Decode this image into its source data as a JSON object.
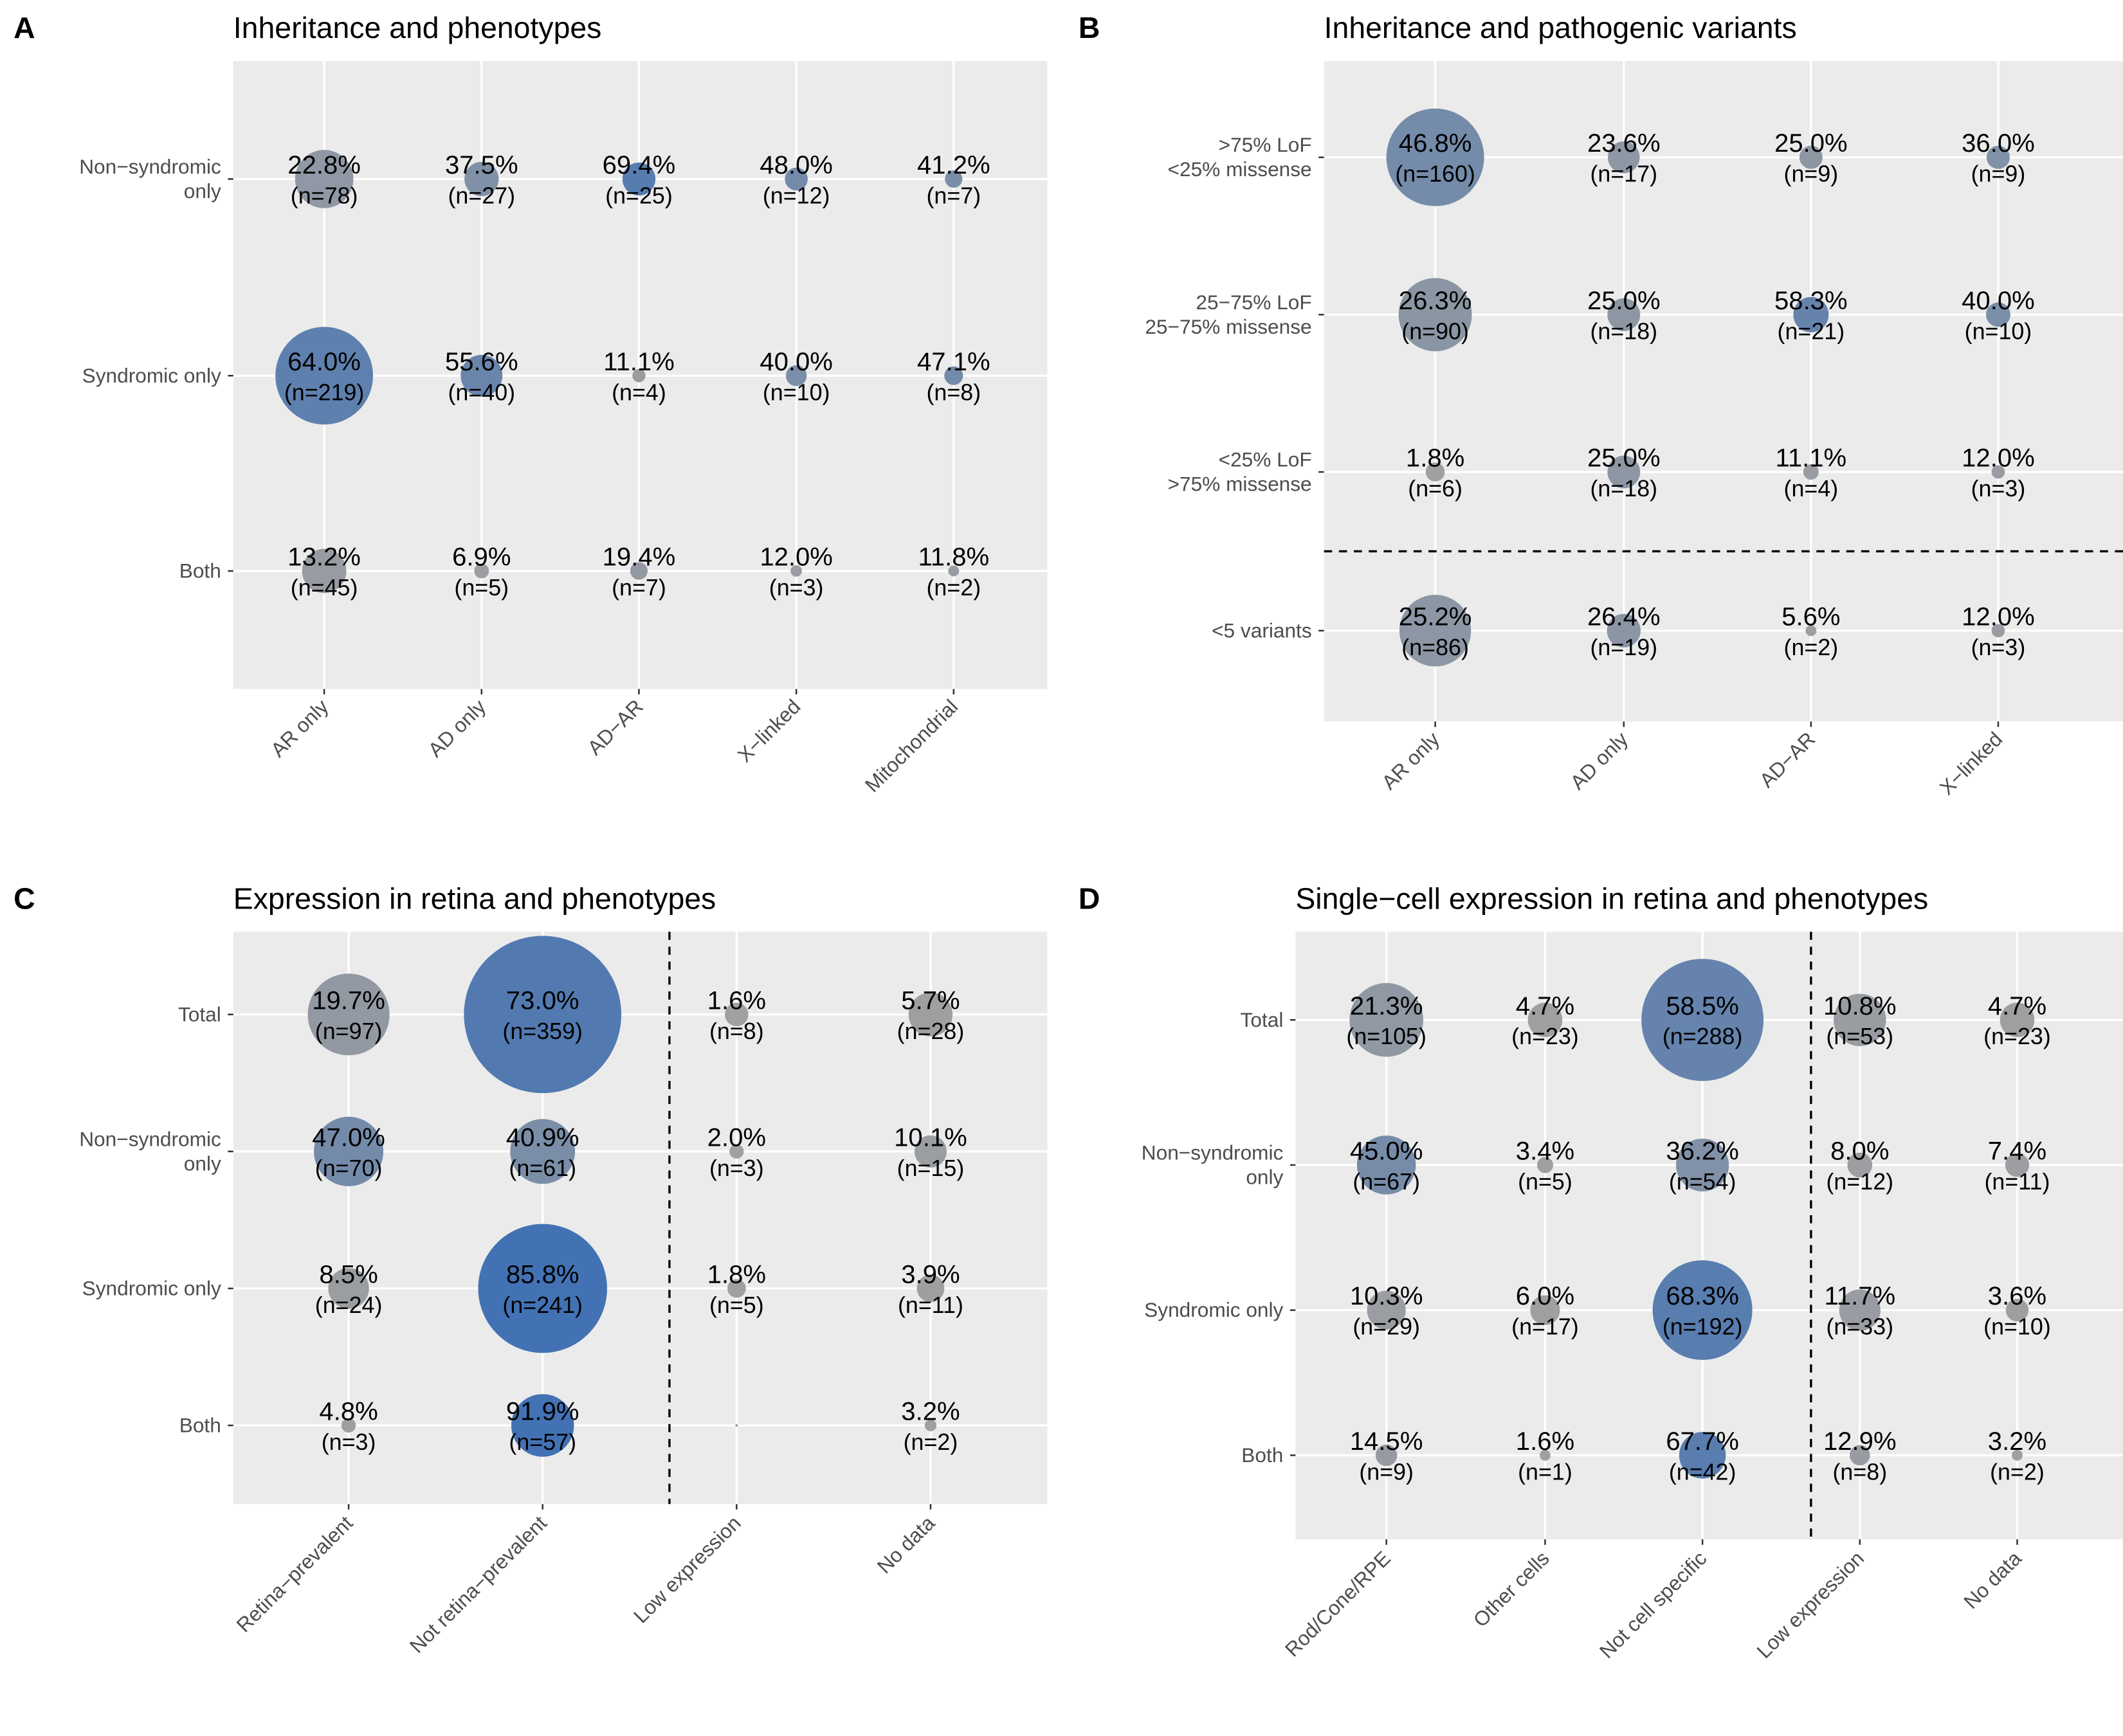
{
  "figure": {
    "domain": "Chart"
  },
  "colors": {
    "low": "#a0a0a0",
    "high": "#4272b4",
    "panel_bg": "#ebebeb",
    "grid": "#ffffff"
  },
  "chart_data": [
    {
      "id": "A",
      "type": "scatter",
      "subtype": "bubble-matrix",
      "letter": "A",
      "title": "Inheritance and phenotypes",
      "xlabel": "",
      "ylabel": "",
      "x_categories": [
        "AR only",
        "AD only",
        "AD−AR",
        "X−linked",
        "Mitochondrial"
      ],
      "y_categories": [
        "Non−syndromic\nonly",
        "Syndromic only",
        "Both"
      ],
      "divider": null,
      "cells": [
        {
          "x": 0,
          "y": 0,
          "pct": "22.8%",
          "n": "(n=78)",
          "value": 22.8
        },
        {
          "x": 1,
          "y": 0,
          "pct": "37.5%",
          "n": "(n=27)",
          "value": 37.5
        },
        {
          "x": 2,
          "y": 0,
          "pct": "69.4%",
          "n": "(n=25)",
          "value": 69.4
        },
        {
          "x": 3,
          "y": 0,
          "pct": "48.0%",
          "n": "(n=12)",
          "value": 48.0
        },
        {
          "x": 4,
          "y": 0,
          "pct": "41.2%",
          "n": "(n=7)",
          "value": 41.2
        },
        {
          "x": 0,
          "y": 1,
          "pct": "64.0%",
          "n": "(n=219)",
          "value": 64.0
        },
        {
          "x": 1,
          "y": 1,
          "pct": "55.6%",
          "n": "(n=40)",
          "value": 55.6
        },
        {
          "x": 2,
          "y": 1,
          "pct": "11.1%",
          "n": "(n=4)",
          "value": 11.1
        },
        {
          "x": 3,
          "y": 1,
          "pct": "40.0%",
          "n": "(n=10)",
          "value": 40.0
        },
        {
          "x": 4,
          "y": 1,
          "pct": "47.1%",
          "n": "(n=8)",
          "value": 47.1
        },
        {
          "x": 0,
          "y": 2,
          "pct": "13.2%",
          "n": "(n=45)",
          "value": 13.2
        },
        {
          "x": 1,
          "y": 2,
          "pct": "6.9%",
          "n": "(n=5)",
          "value": 6.9
        },
        {
          "x": 2,
          "y": 2,
          "pct": "19.4%",
          "n": "(n=7)",
          "value": 19.4
        },
        {
          "x": 3,
          "y": 2,
          "pct": "12.0%",
          "n": "(n=3)",
          "value": 12.0
        },
        {
          "x": 4,
          "y": 2,
          "pct": "11.8%",
          "n": "(n=2)",
          "value": 11.8
        }
      ]
    },
    {
      "id": "B",
      "type": "scatter",
      "subtype": "bubble-matrix",
      "letter": "B",
      "title": "Inheritance and pathogenic variants",
      "xlabel": "",
      "ylabel": "",
      "x_categories": [
        "AR only",
        "AD only",
        "AD−AR",
        "X−linked"
      ],
      "y_categories": [
        ">75% LoF\n<25% missense",
        "25−75% LoF\n25−75% missense",
        "<25% LoF\n>75% missense",
        "<5 variants"
      ],
      "divider": {
        "orientation": "horizontal",
        "between": [
          2,
          3
        ]
      },
      "cells": [
        {
          "x": 0,
          "y": 0,
          "pct": "46.8%",
          "n": "(n=160)",
          "value": 46.8
        },
        {
          "x": 1,
          "y": 0,
          "pct": "23.6%",
          "n": "(n=17)",
          "value": 23.6
        },
        {
          "x": 2,
          "y": 0,
          "pct": "25.0%",
          "n": "(n=9)",
          "value": 25.0
        },
        {
          "x": 3,
          "y": 0,
          "pct": "36.0%",
          "n": "(n=9)",
          "value": 36.0
        },
        {
          "x": 0,
          "y": 1,
          "pct": "26.3%",
          "n": "(n=90)",
          "value": 26.3
        },
        {
          "x": 1,
          "y": 1,
          "pct": "25.0%",
          "n": "(n=18)",
          "value": 25.0
        },
        {
          "x": 2,
          "y": 1,
          "pct": "58.3%",
          "n": "(n=21)",
          "value": 58.3
        },
        {
          "x": 3,
          "y": 1,
          "pct": "40.0%",
          "n": "(n=10)",
          "value": 40.0
        },
        {
          "x": 0,
          "y": 2,
          "pct": "1.8%",
          "n": "(n=6)",
          "value": 1.8
        },
        {
          "x": 1,
          "y": 2,
          "pct": "25.0%",
          "n": "(n=18)",
          "value": 25.0
        },
        {
          "x": 2,
          "y": 2,
          "pct": "11.1%",
          "n": "(n=4)",
          "value": 11.1
        },
        {
          "x": 3,
          "y": 2,
          "pct": "12.0%",
          "n": "(n=3)",
          "value": 12.0
        },
        {
          "x": 0,
          "y": 3,
          "pct": "25.2%",
          "n": "(n=86)",
          "value": 25.2
        },
        {
          "x": 1,
          "y": 3,
          "pct": "26.4%",
          "n": "(n=19)",
          "value": 26.4
        },
        {
          "x": 2,
          "y": 3,
          "pct": "5.6%",
          "n": "(n=2)",
          "value": 5.6
        },
        {
          "x": 3,
          "y": 3,
          "pct": "12.0%",
          "n": "(n=3)",
          "value": 12.0
        }
      ]
    },
    {
      "id": "C",
      "type": "scatter",
      "subtype": "bubble-matrix",
      "letter": "C",
      "title": "Expression in retina and phenotypes",
      "xlabel": "",
      "ylabel": "",
      "x_categories": [
        "Retina−prevalent",
        "Not retina−prevalent",
        "Low expression",
        "No data"
      ],
      "y_categories": [
        "Total",
        "Non−syndromic\nonly",
        "Syndromic only",
        "Both"
      ],
      "divider": {
        "orientation": "vertical",
        "between": [
          1,
          2
        ]
      },
      "cells": [
        {
          "x": 0,
          "y": 0,
          "pct": "19.7%",
          "n": "(n=97)",
          "value": 19.7
        },
        {
          "x": 1,
          "y": 0,
          "pct": "73.0%",
          "n": "(n=359)",
          "value": 73.0
        },
        {
          "x": 2,
          "y": 0,
          "pct": "1.6%",
          "n": "(n=8)",
          "value": 1.6
        },
        {
          "x": 3,
          "y": 0,
          "pct": "5.7%",
          "n": "(n=28)",
          "value": 5.7
        },
        {
          "x": 0,
          "y": 1,
          "pct": "47.0%",
          "n": "(n=70)",
          "value": 47.0
        },
        {
          "x": 1,
          "y": 1,
          "pct": "40.9%",
          "n": "(n=61)",
          "value": 40.9
        },
        {
          "x": 2,
          "y": 1,
          "pct": "2.0%",
          "n": "(n=3)",
          "value": 2.0
        },
        {
          "x": 3,
          "y": 1,
          "pct": "10.1%",
          "n": "(n=15)",
          "value": 10.1
        },
        {
          "x": 0,
          "y": 2,
          "pct": "8.5%",
          "n": "(n=24)",
          "value": 8.5
        },
        {
          "x": 1,
          "y": 2,
          "pct": "85.8%",
          "n": "(n=241)",
          "value": 85.8
        },
        {
          "x": 2,
          "y": 2,
          "pct": "1.8%",
          "n": "(n=5)",
          "value": 1.8
        },
        {
          "x": 3,
          "y": 2,
          "pct": "3.9%",
          "n": "(n=11)",
          "value": 3.9
        },
        {
          "x": 0,
          "y": 3,
          "pct": "4.8%",
          "n": "(n=3)",
          "value": 4.8
        },
        {
          "x": 1,
          "y": 3,
          "pct": "91.9%",
          "n": "(n=57)",
          "value": 91.9
        },
        {
          "x": 2,
          "y": 3,
          "pct": "",
          "n": "",
          "value": 0
        },
        {
          "x": 3,
          "y": 3,
          "pct": "3.2%",
          "n": "(n=2)",
          "value": 3.2
        }
      ]
    },
    {
      "id": "D",
      "type": "scatter",
      "subtype": "bubble-matrix",
      "letter": "D",
      "title": "Single−cell expression in retina and phenotypes",
      "xlabel": "",
      "ylabel": "",
      "x_categories": [
        "Rod/Cone/RPE",
        "Other cells",
        "Not cell specific",
        "Low expression",
        "No data"
      ],
      "y_categories": [
        "Total",
        "Non−syndromic\nonly",
        "Syndromic only",
        "Both"
      ],
      "divider": {
        "orientation": "vertical",
        "between": [
          2,
          3
        ]
      },
      "cells": [
        {
          "x": 0,
          "y": 0,
          "pct": "21.3%",
          "n": "(n=105)",
          "value": 21.3
        },
        {
          "x": 1,
          "y": 0,
          "pct": "4.7%",
          "n": "(n=23)",
          "value": 4.7
        },
        {
          "x": 2,
          "y": 0,
          "pct": "58.5%",
          "n": "(n=288)",
          "value": 58.5
        },
        {
          "x": 3,
          "y": 0,
          "pct": "10.8%",
          "n": "(n=53)",
          "value": 10.8
        },
        {
          "x": 4,
          "y": 0,
          "pct": "4.7%",
          "n": "(n=23)",
          "value": 4.7
        },
        {
          "x": 0,
          "y": 1,
          "pct": "45.0%",
          "n": "(n=67)",
          "value": 45.0
        },
        {
          "x": 1,
          "y": 1,
          "pct": "3.4%",
          "n": "(n=5)",
          "value": 3.4
        },
        {
          "x": 2,
          "y": 1,
          "pct": "36.2%",
          "n": "(n=54)",
          "value": 36.2
        },
        {
          "x": 3,
          "y": 1,
          "pct": "8.0%",
          "n": "(n=12)",
          "value": 8.0
        },
        {
          "x": 4,
          "y": 1,
          "pct": "7.4%",
          "n": "(n=11)",
          "value": 7.4
        },
        {
          "x": 0,
          "y": 2,
          "pct": "10.3%",
          "n": "(n=29)",
          "value": 10.3
        },
        {
          "x": 1,
          "y": 2,
          "pct": "6.0%",
          "n": "(n=17)",
          "value": 6.0
        },
        {
          "x": 2,
          "y": 2,
          "pct": "68.3%",
          "n": "(n=192)",
          "value": 68.3
        },
        {
          "x": 3,
          "y": 2,
          "pct": "11.7%",
          "n": "(n=33)",
          "value": 11.7
        },
        {
          "x": 4,
          "y": 2,
          "pct": "3.6%",
          "n": "(n=10)",
          "value": 3.6
        },
        {
          "x": 0,
          "y": 3,
          "pct": "14.5%",
          "n": "(n=9)",
          "value": 14.5
        },
        {
          "x": 1,
          "y": 3,
          "pct": "1.6%",
          "n": "(n=1)",
          "value": 1.6
        },
        {
          "x": 2,
          "y": 3,
          "pct": "67.7%",
          "n": "(n=42)",
          "value": 67.7
        },
        {
          "x": 3,
          "y": 3,
          "pct": "12.9%",
          "n": "(n=8)",
          "value": 12.9
        },
        {
          "x": 4,
          "y": 3,
          "pct": "3.2%",
          "n": "(n=2)",
          "value": 3.2
        }
      ]
    }
  ]
}
